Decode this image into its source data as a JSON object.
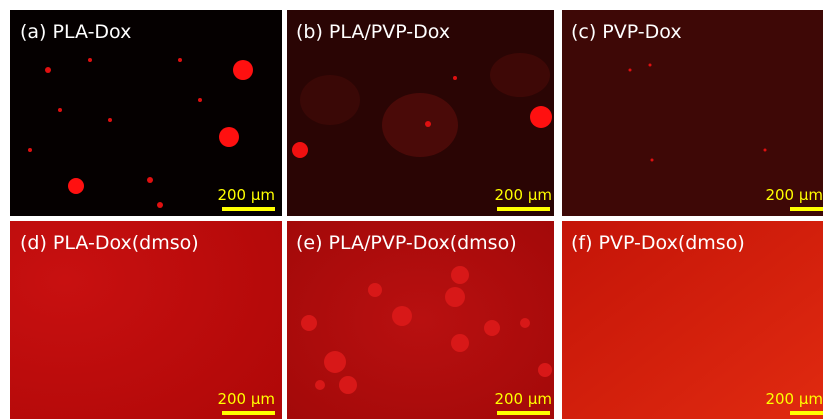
{
  "panels": [
    {
      "label": "(a) PLA-Dox",
      "scale": "200 μm"
    },
    {
      "label": "(b) PLA/PVP-Dox",
      "scale": "200 μm"
    },
    {
      "label": "(c) PVP-Dox",
      "scale": "200 μm"
    },
    {
      "label": "(d) PLA-Dox(dmso)",
      "scale": "200 μm"
    },
    {
      "label": "(e) PLA/PVP-Dox(dmso)",
      "scale": "200 μm"
    },
    {
      "label": "(f) PVP-Dox(dmso)",
      "scale": "200 μm"
    }
  ]
}
